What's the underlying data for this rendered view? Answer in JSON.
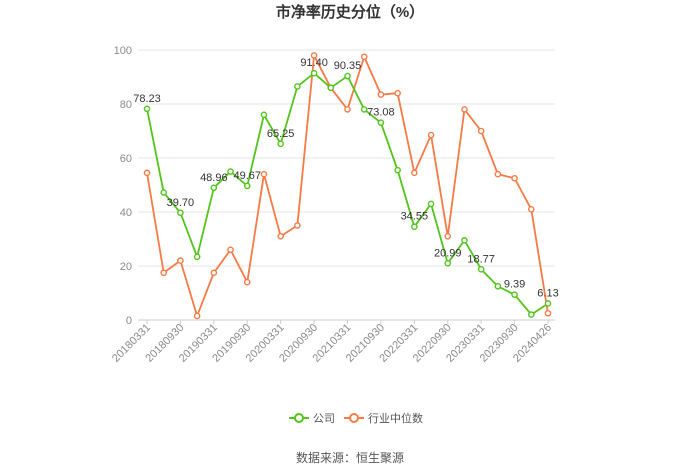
{
  "chart_data": {
    "type": "line",
    "title": "市净率历史分位（%）",
    "ylim": [
      0,
      100
    ],
    "yticks": [
      0,
      20,
      40,
      60,
      80,
      100
    ],
    "x_tick_labels": [
      "20180331",
      "20180930",
      "20190331",
      "20190930",
      "20200331",
      "20200930",
      "20210331",
      "20210930",
      "20220331",
      "20220930",
      "20230331",
      "20230930",
      "20240426"
    ],
    "x": [
      "20180331",
      "20180630",
      "20180930",
      "20181231",
      "20190331",
      "20190630",
      "20190930",
      "20191231",
      "20200331",
      "20200630",
      "20200930",
      "20201231",
      "20210331",
      "20210630",
      "20210930",
      "20211231",
      "20220331",
      "20220630",
      "20220930",
      "20221231",
      "20230331",
      "20230630",
      "20230930",
      "20231231",
      "20240426"
    ],
    "series": [
      {
        "name": "公司",
        "color": "#52c41a",
        "values": [
          78.23,
          47.2,
          39.7,
          23.4,
          48.96,
          55.0,
          49.67,
          76.0,
          65.25,
          86.5,
          91.4,
          86.0,
          90.35,
          78.0,
          73.08,
          55.5,
          34.55,
          43.0,
          20.99,
          29.5,
          18.77,
          12.5,
          9.39,
          2.0,
          6.13
        ],
        "labels": {
          "0": "78.23",
          "2": "39.70",
          "4": "48.96",
          "6": "49.67",
          "8": "65.25",
          "10": "91.40",
          "12": "90.35",
          "14": "73.08",
          "16": "34.55",
          "18": "20.99",
          "20": "18.77",
          "22": "9.39",
          "24": "6.13"
        }
      },
      {
        "name": "行业中位数",
        "color": "#f57a46",
        "values": [
          54.5,
          17.5,
          22.0,
          1.5,
          17.5,
          26.0,
          14.0,
          54.0,
          31.0,
          35.0,
          98.0,
          86.0,
          78.0,
          97.5,
          83.5,
          84.0,
          54.5,
          68.5,
          31.0,
          78.0,
          70.0,
          54.0,
          52.5,
          41.0,
          2.5
        ]
      }
    ],
    "grid": true,
    "legend": "bottom-center"
  },
  "source": "数据来源：恒生聚源"
}
